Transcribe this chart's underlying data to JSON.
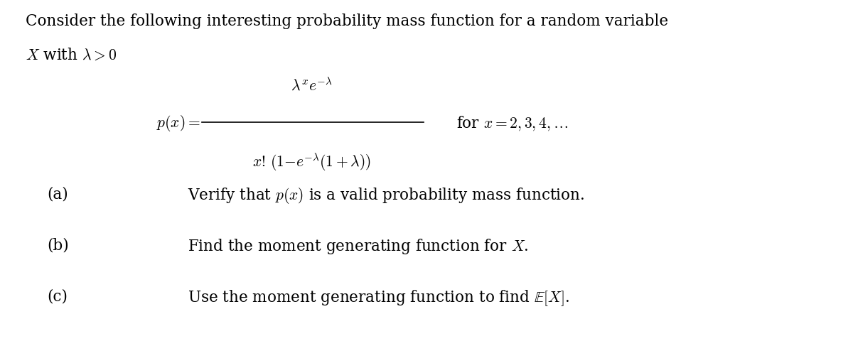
{
  "background_color": "#ffffff",
  "figsize": [
    12.0,
    4.81
  ],
  "dpi": 100,
  "intro_line1": "Consider the following interesting probability mass function for a random variable",
  "intro_line2": "$X$ with $\\lambda > 0$",
  "part_a_label": "(a)",
  "part_a_text": "Verify that $p(x)$ is a valid probability mass function.",
  "part_b_label": "(b)",
  "part_b_text": "Find the moment generating function for $X$.",
  "part_c_label": "(c)",
  "part_c_text": "Use the moment generating function to find $\\mathbb{E}[X]$.",
  "font_size_intro": 15.5,
  "font_size_formula": 15.5,
  "font_size_parts": 15.5,
  "text_color": "#000000"
}
